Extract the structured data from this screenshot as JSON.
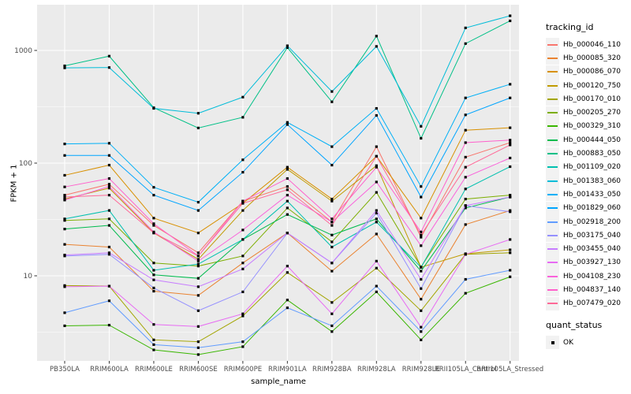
{
  "figure": {
    "ylabel": "FPKM + 1",
    "xlabel": "sample_name"
  },
  "legend": {
    "tracking_title": "tracking_id",
    "quant_title": "quant_status",
    "quant_items": [
      {
        "label": "OK",
        "marker": "black-square"
      }
    ]
  },
  "chart_data": {
    "type": "line",
    "title": "",
    "xlabel": "sample_name",
    "ylabel": "FPKM + 1",
    "y_scale": "log10",
    "ylim": [
      1.7,
      2600
    ],
    "yticks": [
      10,
      100,
      1000
    ],
    "grid": true,
    "legend_position": "right",
    "panel_bg": "#EBEBEB",
    "grid_color": "#FFFFFF",
    "point_color": "#000000",
    "point_shape": "square",
    "axis_text_color": "#4D4D4D",
    "tick_color": "#333333",
    "categories": [
      "PB350LA",
      "RRIM600LA",
      "RRIM600LE",
      "RRIM600SE",
      "RRIM600PE",
      "RRIM901LA",
      "RRIM928BA",
      "RRIM928LA",
      "RRIM928LE",
      "RRII105LA_Control",
      "RRII105LA_Stressed"
    ],
    "series": [
      {
        "name": "Hb_000046_110",
        "color": "#F8766D",
        "values": [
          52,
          65,
          28,
          16,
          46,
          62,
          30,
          140,
          22,
          113,
          152
        ]
      },
      {
        "name": "Hb_000085_320",
        "color": "#EA8331",
        "values": [
          19,
          18,
          7.3,
          6.7,
          13,
          24,
          11,
          23.5,
          6.2,
          28.5,
          38
        ]
      },
      {
        "name": "Hb_000086_070",
        "color": "#D89000",
        "values": [
          78,
          96,
          32.5,
          24,
          44,
          92,
          48,
          115,
          32.5,
          196,
          206
        ]
      },
      {
        "name": "Hb_000120_750",
        "color": "#C09B00",
        "values": [
          48,
          60,
          24,
          14,
          38,
          88,
          46,
          95,
          11.9,
          15.7,
          17
        ]
      },
      {
        "name": "Hb_000170_010",
        "color": "#A3A500",
        "values": [
          8.2,
          8.1,
          2.7,
          2.6,
          4.4,
          10.7,
          5.8,
          11.7,
          4.9,
          15.5,
          16
        ]
      },
      {
        "name": "Hb_000205_270",
        "color": "#7CAE00",
        "values": [
          31,
          32,
          13,
          12.2,
          15,
          40,
          20,
          55,
          12,
          48,
          52
        ]
      },
      {
        "name": "Hb_000329_310",
        "color": "#39B600",
        "values": [
          3.6,
          3.65,
          2.2,
          2.0,
          2.35,
          6.1,
          3.2,
          7.2,
          2.7,
          7.0,
          9.8
        ]
      },
      {
        "name": "Hb_000444_050",
        "color": "#00BB4E",
        "values": [
          26,
          28,
          10.2,
          9.5,
          21,
          35,
          23,
          32,
          11,
          40,
          50
        ]
      },
      {
        "name": "Hb_000883_050",
        "color": "#00C087",
        "values": [
          730,
          890,
          310,
          205,
          255,
          1060,
          350,
          1340,
          166,
          1150,
          1830
        ]
      },
      {
        "name": "Hb_001109_020",
        "color": "#00C0AF",
        "values": [
          32,
          38,
          11.2,
          12.7,
          21,
          46,
          18,
          30,
          11.9,
          59,
          93
        ]
      },
      {
        "name": "Hb_001383_060",
        "color": "#00BCD8",
        "values": [
          700,
          705,
          306,
          277,
          385,
          1100,
          432,
          1086,
          212,
          1585,
          2030
        ]
      },
      {
        "name": "Hb_001433_050",
        "color": "#00B0F6",
        "values": [
          148,
          150,
          61,
          45,
          107,
          230,
          140,
          306,
          62,
          379,
          501
        ]
      },
      {
        "name": "Hb_001829_060",
        "color": "#00A5FF",
        "values": [
          117,
          117,
          52,
          38,
          83,
          220,
          96,
          265,
          50,
          268,
          379
        ]
      },
      {
        "name": "Hb_002918_200",
        "color": "#619CFF",
        "values": [
          4.7,
          6.0,
          2.45,
          2.3,
          2.6,
          5.2,
          3.6,
          8.1,
          3.2,
          9.3,
          11.2
        ]
      },
      {
        "name": "Hb_003175_040",
        "color": "#9590FF",
        "values": [
          15.0,
          15.5,
          7.8,
          4.9,
          7.2,
          24,
          13,
          36,
          7.7,
          42,
          37
        ]
      },
      {
        "name": "Hb_003455_040",
        "color": "#C77CFF",
        "values": [
          15.3,
          16,
          9.2,
          8.0,
          11.5,
          24,
          13,
          38,
          9.3,
          42,
          50
        ]
      },
      {
        "name": "Hb_003927_130",
        "color": "#E76BF3",
        "values": [
          8.0,
          8.1,
          3.7,
          3.55,
          4.6,
          12.2,
          4.6,
          13.5,
          3.5,
          15.5,
          21
        ]
      },
      {
        "name": "Hb_004108_230",
        "color": "#FA62DB",
        "values": [
          47,
          62,
          24.5,
          13.5,
          25.5,
          52,
          30,
          68,
          18.5,
          75,
          111
        ]
      },
      {
        "name": "Hb_004837_140",
        "color": "#FF61CC",
        "values": [
          61.5,
          73,
          29,
          15,
          46,
          73,
          32,
          92,
          24.5,
          152,
          160
        ]
      },
      {
        "name": "Hb_007479_020",
        "color": "#FF6A98",
        "values": [
          50,
          52,
          24,
          15,
          44,
          58,
          28,
          115,
          23,
          92,
          145
        ]
      }
    ]
  }
}
